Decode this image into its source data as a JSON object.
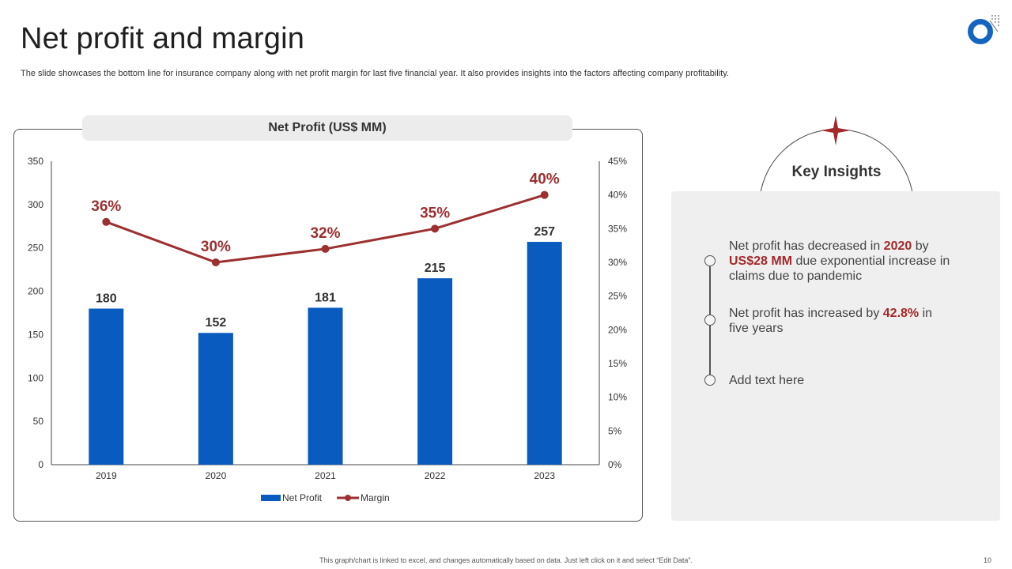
{
  "slide": {
    "title": "Net profit and margin",
    "subtitle": "The slide showcases the bottom line for insurance company along with net profit margin for last five financial year. It also provides insights into the factors affecting company profitability.",
    "footer_note": "This graph/chart is linked to excel, and changes automatically based on data. Just left click on it and select “Edit Data”.",
    "page_number": "10"
  },
  "chart_data": {
    "type": "bar",
    "title": "Net Profit (US$ MM)",
    "categories": [
      "2019",
      "2020",
      "2021",
      "2022",
      "2023"
    ],
    "series": [
      {
        "name": "Net Profit",
        "kind": "bar",
        "axis": "left",
        "values": [
          180,
          152,
          181,
          215,
          257
        ],
        "color": "#0a5bbf"
      },
      {
        "name": "Margin",
        "kind": "line",
        "axis": "right",
        "values": [
          36,
          30,
          32,
          35,
          40
        ],
        "color": "#9c2f2f"
      }
    ],
    "bar_labels": [
      "180",
      "152",
      "181",
      "215",
      "257"
    ],
    "line_labels": [
      "36%",
      "30%",
      "32%",
      "35%",
      "40%"
    ],
    "ylim": [
      0,
      350
    ],
    "yticks": [
      "0",
      "50",
      "100",
      "150",
      "200",
      "250",
      "300",
      "350"
    ],
    "y2lim": [
      0,
      45
    ],
    "y2ticks": [
      "0%",
      "5%",
      "10%",
      "15%",
      "20%",
      "25%",
      "30%",
      "35%",
      "40%",
      "45%"
    ],
    "legend": [
      "Net Profit",
      "Margin"
    ],
    "legend_position": "bottom-center",
    "grid": false
  },
  "insights": {
    "title": "Key Insights",
    "items": [
      {
        "p1": "Net profit has decreased in ",
        "h1": "2020",
        "p2": " by ",
        "h2": "US$28 MM",
        "p3": " due exponential increase in claims due to pandemic"
      },
      {
        "p1": "Net profit has increased by ",
        "h1": "42.8%",
        "p2": " in five years"
      },
      {
        "p1": "Add text here"
      }
    ]
  },
  "colors": {
    "accent_red": "#9c2f2f",
    "bar_blue": "#0a5bbf",
    "logo_blue": "#1565c0"
  }
}
